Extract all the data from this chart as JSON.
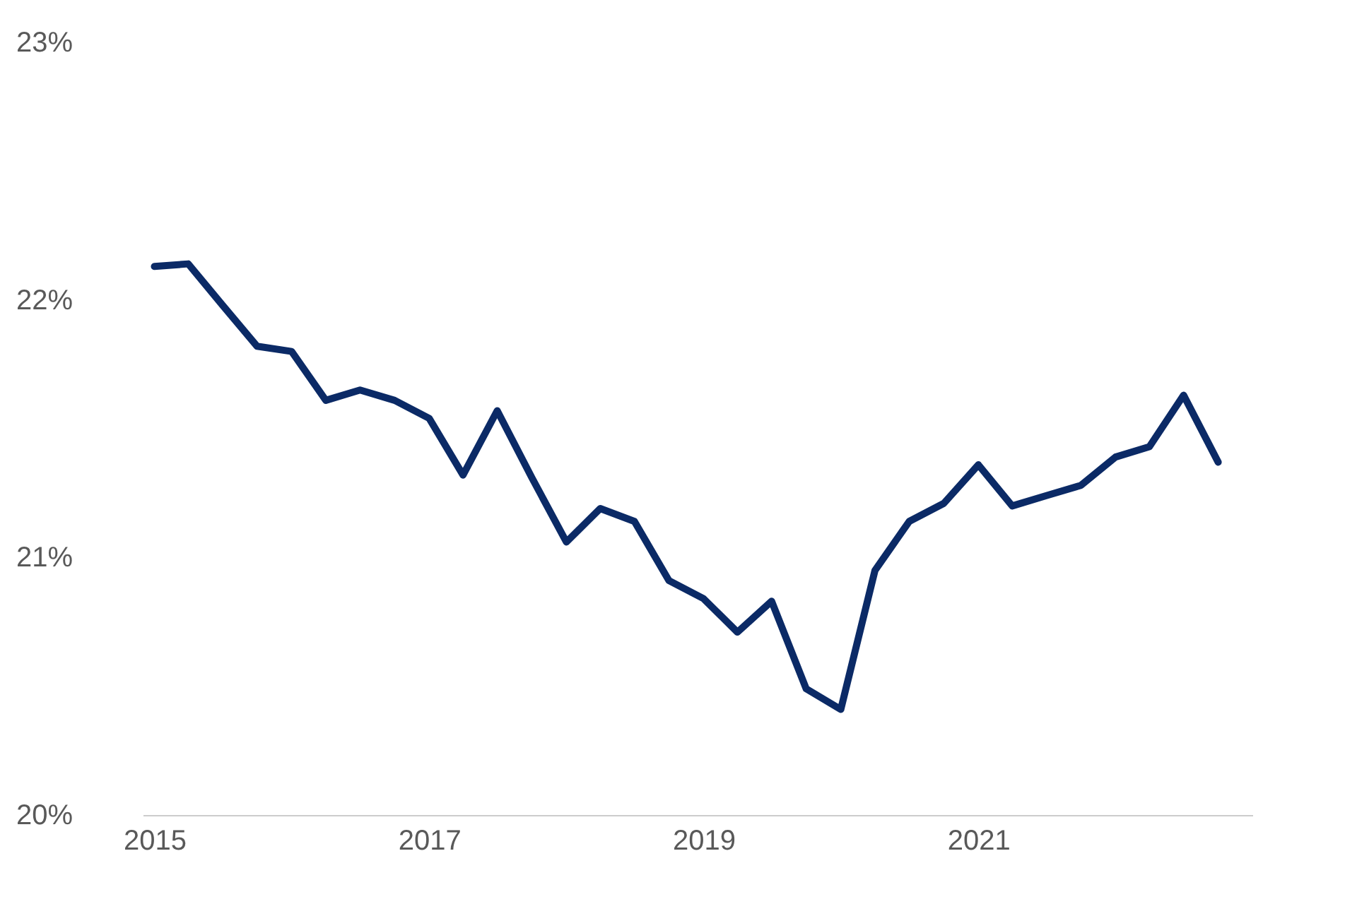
{
  "chart_data": {
    "type": "line",
    "x": [
      "2015-01",
      "2015-04",
      "2015-07",
      "2015-10",
      "2016-01",
      "2016-04",
      "2016-07",
      "2016-10",
      "2017-01",
      "2017-04",
      "2017-07",
      "2017-10",
      "2018-01",
      "2018-04",
      "2018-07",
      "2018-10",
      "2019-01",
      "2019-04",
      "2019-07",
      "2019-10",
      "2020-01",
      "2020-04",
      "2020-07",
      "2020-10",
      "2021-01",
      "2021-04",
      "2021-07",
      "2021-10",
      "2022-01",
      "2022-04",
      "2022-07",
      "2022-10"
    ],
    "series": [
      {
        "color": "#0b2a66",
        "values": [
          22.13,
          22.14,
          21.98,
          21.82,
          21.8,
          21.61,
          21.65,
          21.61,
          21.54,
          21.32,
          21.57,
          21.31,
          21.06,
          21.19,
          21.14,
          20.91,
          20.84,
          20.71,
          20.83,
          20.49,
          20.41,
          20.95,
          21.14,
          21.21,
          21.36,
          21.2,
          21.24,
          21.28,
          21.39,
          21.43,
          21.63,
          21.37
        ]
      }
    ],
    "xlim": [
      "2014-12-01",
      "2022-12-31"
    ],
    "xticks": [
      "2015",
      "2017",
      "2019",
      "2021"
    ],
    "ylim": [
      20,
      23
    ],
    "yticks": [
      {
        "value": 20,
        "label": "20%"
      },
      {
        "value": 21,
        "label": "21%"
      },
      {
        "value": 22,
        "label": "22%"
      },
      {
        "value": 23,
        "label": "23%"
      }
    ],
    "grid": false,
    "marker": "none",
    "line_style": "solid"
  }
}
